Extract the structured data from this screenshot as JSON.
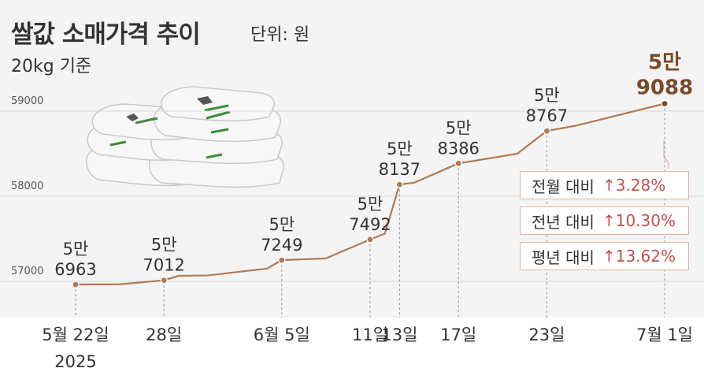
{
  "header": {
    "title": "쌀값 소매가격 추이",
    "unit": "단위: 원",
    "subtitle": "20kg 기준"
  },
  "comparisons": [
    {
      "label": "전월 대비",
      "value": "↑3.28%"
    },
    {
      "label": "전년 대비",
      "value": "↑10.30%"
    },
    {
      "label": "평년 대비",
      "value": "↑13.62%"
    }
  ],
  "colors": {
    "line": "#b07a55",
    "highlight": "#7b4a2b",
    "increase": "#c0504d"
  },
  "chart_data": {
    "type": "line",
    "title": "쌀값 소매가격 추이",
    "ylim": [
      56500,
      59300
    ],
    "yticks": [
      57000,
      58000,
      59000
    ],
    "ytick_labels": [
      "57000",
      "58000",
      "59000"
    ],
    "grid": true,
    "x_tick_labels": [
      {
        "x": "2025-05-22",
        "label": "5월 22일",
        "sub": "2025"
      },
      {
        "x": "2025-05-28",
        "label": "28일"
      },
      {
        "x": "2025-06-05",
        "label": "6월 5일"
      },
      {
        "x": "2025-06-11",
        "label": "11일"
      },
      {
        "x": "2025-06-13",
        "label": "13일"
      },
      {
        "x": "2025-06-17",
        "label": "17일"
      },
      {
        "x": "2025-06-23",
        "label": "23일"
      },
      {
        "x": "2025-07-01",
        "label": "7월 1일"
      }
    ],
    "series": [
      {
        "points": [
          {
            "x": "2025-05-22",
            "y": 56963
          },
          {
            "x": "2025-05-25",
            "y": 56965
          },
          {
            "x": "2025-05-28",
            "y": 57012
          },
          {
            "x": "2025-05-29",
            "y": 57065
          },
          {
            "x": "2025-05-31",
            "y": 57070
          },
          {
            "x": "2025-06-04",
            "y": 57150
          },
          {
            "x": "2025-06-05",
            "y": 57249
          },
          {
            "x": "2025-06-08",
            "y": 57270
          },
          {
            "x": "2025-06-11",
            "y": 57492
          },
          {
            "x": "2025-06-12",
            "y": 57560
          },
          {
            "x": "2025-06-13",
            "y": 58137
          },
          {
            "x": "2025-06-14",
            "y": 58160
          },
          {
            "x": "2025-06-17",
            "y": 58386
          },
          {
            "x": "2025-06-21",
            "y": 58500
          },
          {
            "x": "2025-06-23",
            "y": 58767
          },
          {
            "x": "2025-06-25",
            "y": 58830
          },
          {
            "x": "2025-07-01",
            "y": 59088
          }
        ]
      }
    ],
    "data_labels": [
      {
        "x": "2025-05-22",
        "line1": "5만",
        "line2": "6963"
      },
      {
        "x": "2025-05-28",
        "line1": "5만",
        "line2": "7012"
      },
      {
        "x": "2025-06-05",
        "line1": "5만",
        "line2": "7249"
      },
      {
        "x": "2025-06-11",
        "line1": "5만",
        "line2": "7492"
      },
      {
        "x": "2025-06-13",
        "line1": "5만",
        "line2": "8137"
      },
      {
        "x": "2025-06-17",
        "line1": "5만",
        "line2": "8386"
      },
      {
        "x": "2025-06-23",
        "line1": "5만",
        "line2": "8767"
      },
      {
        "x": "2025-07-01",
        "line1": "5만",
        "line2": "9088",
        "highlight": true
      }
    ]
  }
}
